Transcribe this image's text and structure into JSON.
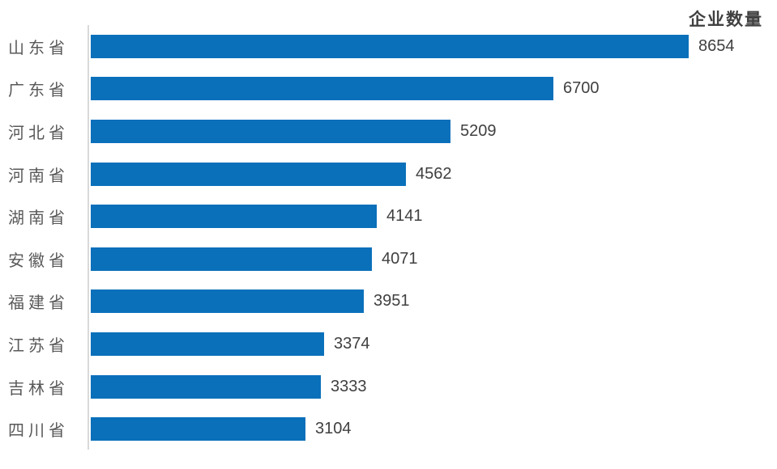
{
  "chart_data": {
    "type": "bar",
    "orientation": "horizontal",
    "title": "企业数量",
    "categories": [
      "山东省",
      "广东省",
      "河北省",
      "河南省",
      "湖南省",
      "安徽省",
      "福建省",
      "江苏省",
      "吉林省",
      "四川省"
    ],
    "values": [
      8654,
      6700,
      5209,
      4562,
      4141,
      4071,
      3951,
      3374,
      3333,
      3104
    ],
    "xlabel": "",
    "ylabel": "",
    "xlim": [
      0,
      9000
    ],
    "grid": false,
    "legend": "none",
    "value_labels_shown": true,
    "colors": {
      "bar": "#0a70ba",
      "category_label": "#595959",
      "value_label": "#404040",
      "title": "#404040",
      "axis_line": "#d9d9d9",
      "background": "#ffffff"
    }
  }
}
